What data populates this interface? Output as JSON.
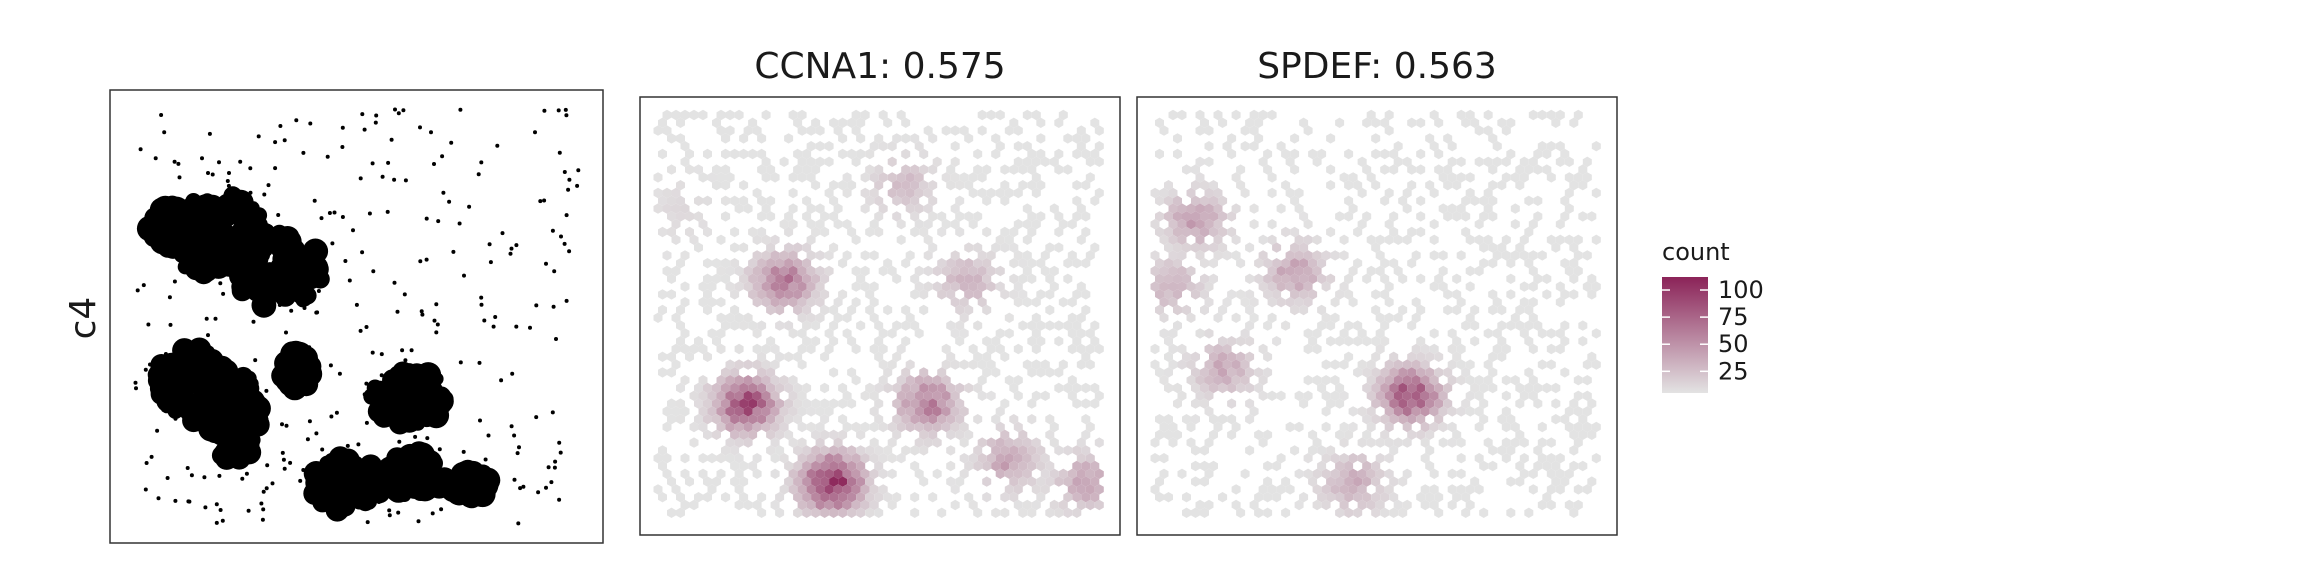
{
  "row_label": "c4",
  "chart_data": [
    {
      "type": "scatter",
      "title": "",
      "description_cluster": "c4",
      "xlabel": "",
      "ylabel": "",
      "color": "#000000",
      "grid": false
    },
    {
      "type": "heatmap",
      "title": "CCNA1: 0.575",
      "gene": "CCNA1",
      "score": 0.575,
      "xlabel": "",
      "ylabel": "",
      "hotspots": [
        {
          "cx": 0.09,
          "cy": 0.26,
          "w": 0.06
        },
        {
          "cx": 0.3,
          "cy": 0.42,
          "w": 0.55
        },
        {
          "cx": 0.22,
          "cy": 0.7,
          "w": 0.8
        },
        {
          "cx": 0.4,
          "cy": 0.88,
          "w": 1.0
        },
        {
          "cx": 0.6,
          "cy": 0.7,
          "w": 0.55
        },
        {
          "cx": 0.77,
          "cy": 0.83,
          "w": 0.35
        },
        {
          "cx": 0.68,
          "cy": 0.42,
          "w": 0.25
        },
        {
          "cx": 0.55,
          "cy": 0.2,
          "w": 0.2
        },
        {
          "cx": 0.93,
          "cy": 0.88,
          "w": 0.35
        }
      ],
      "color_low": "#e3e3e3",
      "color_high": "#8b2358"
    },
    {
      "type": "heatmap",
      "title": "SPDEF: 0.563",
      "gene": "SPDEF",
      "score": 0.563,
      "xlabel": "",
      "ylabel": "",
      "hotspots": [
        {
          "cx": 0.12,
          "cy": 0.28,
          "w": 0.35
        },
        {
          "cx": 0.33,
          "cy": 0.4,
          "w": 0.35
        },
        {
          "cx": 0.18,
          "cy": 0.62,
          "w": 0.3
        },
        {
          "cx": 0.57,
          "cy": 0.68,
          "w": 0.75
        },
        {
          "cx": 0.45,
          "cy": 0.88,
          "w": 0.3
        },
        {
          "cx": 0.07,
          "cy": 0.43,
          "w": 0.25
        }
      ],
      "color_low": "#e3e3e3",
      "color_high": "#8b2358"
    }
  ],
  "legend": {
    "title": "count",
    "ticks": [
      100,
      75,
      50,
      25
    ],
    "min": 5,
    "max": 112,
    "color_low": "#e3e3e3",
    "color_high": "#8b2358"
  }
}
